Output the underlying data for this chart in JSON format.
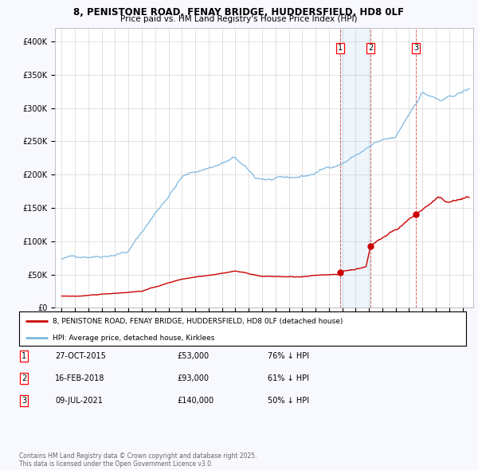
{
  "title_line1": "8, PENISTONE ROAD, FENAY BRIDGE, HUDDERSFIELD, HD8 0LF",
  "title_line2": "Price paid vs. HM Land Registry's House Price Index (HPI)",
  "background_color": "#f8f8ff",
  "plot_bg_color": "#ffffff",
  "hpi_color": "#7db8e0",
  "price_color": "#cc0000",
  "sale_dates": [
    2015.82,
    2018.12,
    2021.52
  ],
  "sale_prices": [
    53000,
    93000,
    140000
  ],
  "sale_labels": [
    "1",
    "2",
    "3"
  ],
  "legend_label_price": "8, PENISTONE ROAD, FENAY BRIDGE, HUDDERSFIELD, HD8 0LF (detached house)",
  "legend_label_hpi": "HPI: Average price, detached house, Kirklees",
  "table_data": [
    [
      "1",
      "27-OCT-2015",
      "£53,000",
      "76% ↓ HPI"
    ],
    [
      "2",
      "16-FEB-2018",
      "£93,000",
      "61% ↓ HPI"
    ],
    [
      "3",
      "09-JUL-2021",
      "£140,000",
      "50% ↓ HPI"
    ]
  ],
  "footnote": "Contains HM Land Registry data © Crown copyright and database right 2025.\nThis data is licensed under the Open Government Licence v3.0.",
  "ylim": [
    0,
    420000
  ],
  "yticks": [
    0,
    50000,
    100000,
    150000,
    200000,
    250000,
    300000,
    350000,
    400000
  ],
  "ytick_labels": [
    "£0",
    "£50K",
    "£100K",
    "£150K",
    "£200K",
    "£250K",
    "£300K",
    "£350K",
    "£400K"
  ],
  "xlim_start": 1994.5,
  "xlim_end": 2025.8,
  "shade_start": 2015.82,
  "shade_end": 2018.12
}
